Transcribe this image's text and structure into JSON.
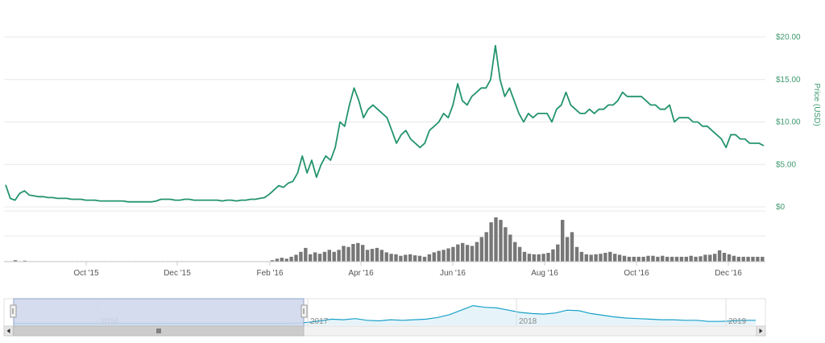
{
  "chart_data": {
    "type": "line",
    "title": "",
    "ylabel": "Price (USD)",
    "ylim": [
      0,
      20
    ],
    "yticks": [
      "$0",
      "$5.00",
      "$10.00",
      "$15.00",
      "$20.00"
    ],
    "x_tick_labels": [
      "Oct '15",
      "Dec '15",
      "Feb '16",
      "Apr '16",
      "Jun '16",
      "Aug '16",
      "Oct '16",
      "Dec '16"
    ],
    "series": [
      {
        "values": [
          2.6,
          1.0,
          0.8,
          1.6,
          1.9,
          1.4,
          1.3,
          1.2,
          1.2,
          1.1,
          1.1,
          1.0,
          1.0,
          1.0,
          0.9,
          0.9,
          0.9,
          0.8,
          0.8,
          0.8,
          0.7,
          0.7,
          0.7,
          0.7,
          0.7,
          0.7,
          0.6,
          0.6,
          0.6,
          0.6,
          0.6,
          0.6,
          0.7,
          0.9,
          0.9,
          0.9,
          0.8,
          0.8,
          0.9,
          0.9,
          0.8,
          0.8,
          0.8,
          0.8,
          0.8,
          0.8,
          0.7,
          0.8,
          0.8,
          0.7,
          0.8,
          0.8,
          0.9,
          0.9,
          1.0,
          1.1,
          1.5,
          2.0,
          2.5,
          2.3,
          2.8,
          3.0,
          4.0,
          6.0,
          4.0,
          5.5,
          3.5,
          5.0,
          6.0,
          5.5,
          7.0,
          10.0,
          9.5,
          12.0,
          14.0,
          12.5,
          10.5,
          11.5,
          12.0,
          11.5,
          11.0,
          10.5,
          9.0,
          7.5,
          8.5,
          9.0,
          8.0,
          7.5,
          7.0,
          7.5,
          9.0,
          9.5,
          10.0,
          11.0,
          10.5,
          12.0,
          14.5,
          12.5,
          12.0,
          13.0,
          13.5,
          14.0,
          14.0,
          15.0,
          19.0,
          15.0,
          13.0,
          14.0,
          12.5,
          11.0,
          10.0,
          11.0,
          10.5,
          11.0,
          11.0,
          11.0,
          10.0,
          11.5,
          12.0,
          13.5,
          12.0,
          11.5,
          11.0,
          11.0,
          11.5,
          11.0,
          11.5,
          11.5,
          12.0,
          12.0,
          12.5,
          13.5,
          13.0,
          13.0,
          13.0,
          13.0,
          12.5,
          12.0,
          12.0,
          11.5,
          11.5,
          12.0,
          10.0,
          10.5,
          10.5,
          10.5,
          10.0,
          10.0,
          9.5,
          9.5,
          9.0,
          8.5,
          8.0,
          7.0,
          8.5,
          8.5,
          8.0,
          8.0,
          7.5,
          7.5,
          7.5,
          7.2
        ]
      }
    ],
    "volume": [
      0.1,
      0.1,
      0.3,
      0.1,
      0.2,
      0.1,
      0.1,
      0.1,
      0.1,
      0.1,
      0.1,
      0.1,
      0.1,
      0.1,
      0.1,
      0.1,
      0.1,
      0.1,
      0.1,
      0.1,
      0.1,
      0.1,
      0.1,
      0.1,
      0.1,
      0.1,
      0.1,
      0.1,
      0.1,
      0.1,
      0.1,
      0.1,
      0.1,
      0.1,
      0.1,
      0.1,
      0.1,
      0.1,
      0.1,
      0.1,
      0.1,
      0.1,
      0.1,
      0.1,
      0.1,
      0.1,
      0.1,
      0.1,
      0.1,
      0.1,
      0.1,
      0.1,
      0.1,
      0.1,
      0.1,
      0.1,
      0.3,
      0.6,
      0.8,
      0.6,
      1.0,
      1.4,
      2.0,
      2.8,
      1.5,
      1.9,
      1.6,
      2.0,
      2.4,
      2.0,
      2.4,
      3.2,
      3.0,
      3.6,
      3.8,
      3.4,
      2.4,
      2.6,
      2.8,
      2.4,
      1.9,
      1.6,
      1.5,
      1.2,
      1.4,
      1.5,
      1.3,
      1.2,
      1.0,
      1.5,
      1.9,
      2.2,
      2.4,
      2.7,
      3.0,
      3.5,
      3.8,
      3.4,
      3.2,
      4.0,
      5.0,
      6.0,
      8.0,
      9.0,
      8.5,
      7.0,
      5.5,
      4.0,
      3.0,
      2.0,
      1.6,
      1.5,
      1.5,
      1.6,
      1.8,
      2.5,
      3.5,
      8.5,
      5.0,
      6.0,
      3.0,
      2.0,
      1.5,
      1.4,
      1.5,
      1.6,
      1.8,
      2.0,
      1.6,
      1.4,
      1.2,
      1.0,
      1.0,
      1.0,
      1.0,
      1.2,
      1.2,
      1.0,
      1.2,
      1.0,
      1.0,
      1.0,
      1.0,
      1.0,
      1.2,
      1.0,
      1.1,
      1.4,
      1.4,
      1.6,
      2.3,
      1.8,
      1.5,
      1.2,
      1.0,
      1.0,
      1.0,
      1.0,
      1.0,
      1.0
    ]
  },
  "navigator": {
    "year_labels": [
      "2016",
      "2017",
      "2018",
      "2019"
    ],
    "series_values": [
      0.3,
      0.3,
      0.3,
      0.3,
      0.3,
      0.3,
      0.3,
      0.3,
      0.3,
      0.3,
      0.3,
      0.3,
      0.3,
      0.3,
      0.3,
      0.3,
      0.3,
      0.3,
      0.3,
      0.3,
      0.3,
      0.3,
      0.3,
      0.3,
      0.5,
      1.2,
      2.5,
      4.0,
      3.5,
      4.5,
      3.0,
      2.5,
      3.5,
      3.0,
      3.5,
      4.0,
      5.5,
      8.0,
      12.0,
      16.0,
      14.5,
      14.0,
      12.0,
      10.0,
      9.0,
      8.5,
      9.5,
      12.0,
      11.5,
      9.0,
      7.5,
      6.0,
      5.0,
      4.5,
      4.0,
      3.5,
      3.5,
      3.0,
      3.0,
      2.0,
      2.0,
      2.5,
      3.0,
      3.0
    ]
  },
  "colors": {
    "line": "#23946b",
    "volume": "#777777",
    "axis_text": "#3d9970",
    "navigator_line": "#1aa1c9",
    "navigator_fill": "#e6f4fa",
    "navigator_mask": "#ccd6eb",
    "gridline": "#e8e8e8"
  }
}
